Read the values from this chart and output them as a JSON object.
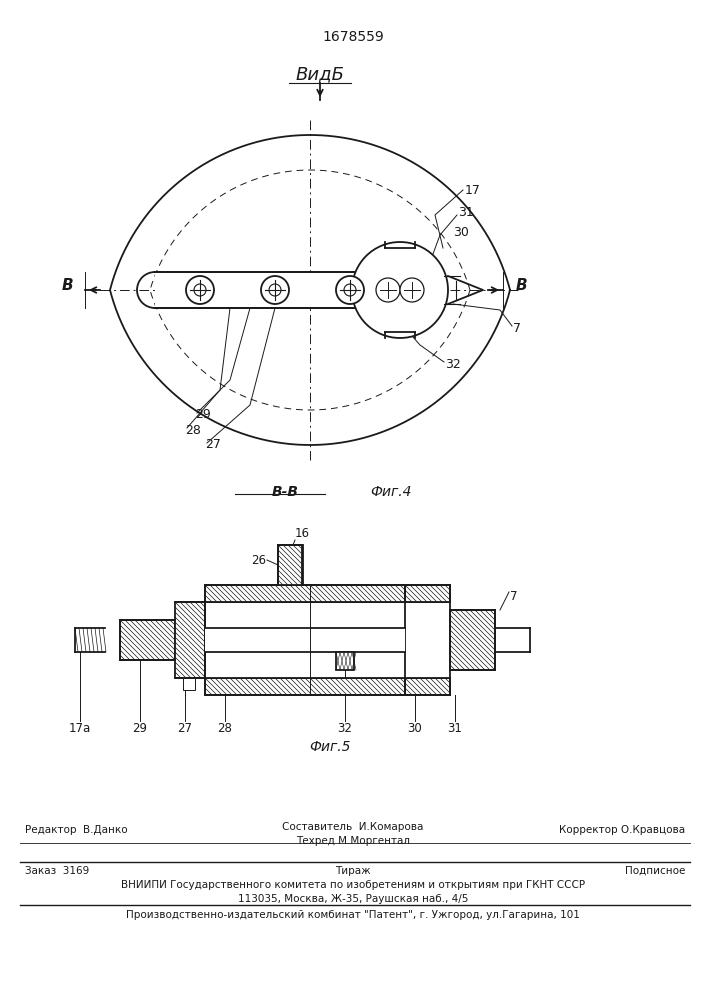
{
  "title_number": "1678559",
  "bg_color": "#ffffff",
  "fig4_label": "Фиг.4",
  "fig5_label": "Фиг.5",
  "view_label": "ВидБ",
  "section_label": "В-В",
  "footer_line1_left": "Редактор  В.Данко",
  "footer_line1_center_top": "Составитель  И.Комарова",
  "footer_line1_center_bot": "Техред М.Моргентал",
  "footer_line1_right": "Корректор О.Кравцова",
  "footer_line2_left": "Заказ  3169",
  "footer_line2_center": "Тираж",
  "footer_line2_right": "Подписное",
  "footer_line3": "ВНИИПИ Государственного комитета по изобретениям и открытиям при ГКНТ СССР",
  "footer_line4": "113035, Москва, Ж-35, Раушская наб., 4/5",
  "footer_line5": "Производственно-издательский комбинат \"Патент\", г. Ужгород, ул.Гагарина, 101"
}
